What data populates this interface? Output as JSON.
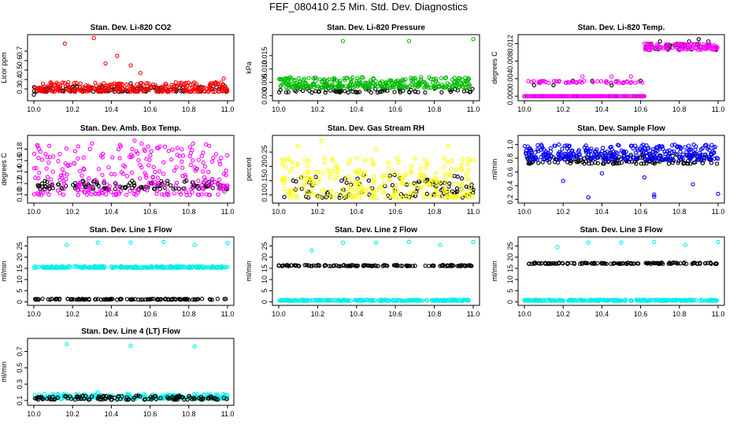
{
  "page": {
    "title": "FEF_080410  2.5 Min. Std. Dev. Diagnostics"
  },
  "chart_data": [
    {
      "id": "co2",
      "type": "scatter",
      "title": "Stan. Dev. Li-820 CO2",
      "ylabel": "Licor ppm",
      "xlim": [
        10.0,
        11.0
      ],
      "ylim": [
        0.2,
        0.85
      ],
      "xticks": [
        "10.0",
        "10.2",
        "10.4",
        "10.6",
        "10.8",
        "11.0"
      ],
      "yticks": [
        "0.3",
        "0.4",
        "0.5",
        "0.6",
        "0.7"
      ],
      "series": [
        {
          "name": "black",
          "color": "#000000",
          "n": 110,
          "base": 0.27,
          "spread": 0.06,
          "seed": 11,
          "points": [
            [
              10.0,
              0.24
            ],
            [
              10.2,
              0.32
            ],
            [
              10.5,
              0.36
            ]
          ]
        },
        {
          "name": "red",
          "color": "#ff0000",
          "n": 300,
          "base": 0.27,
          "spread": 0.1,
          "seed": 12,
          "points": [
            [
              10.16,
              0.78
            ],
            [
              10.31,
              0.84
            ],
            [
              10.37,
              0.57
            ],
            [
              10.43,
              0.65
            ],
            [
              10.5,
              0.55
            ],
            [
              10.55,
              0.47
            ],
            [
              10.98,
              0.41
            ]
          ]
        }
      ]
    },
    {
      "id": "pressure",
      "type": "scatter",
      "title": "Stan. Dev. Li-820 Pressure",
      "ylabel": "kPa",
      "xlim": [
        10.0,
        11.0
      ],
      "ylim": [
        -0.001,
        0.022
      ],
      "xticks": [
        "10.0",
        "10.2",
        "10.4",
        "10.6",
        "10.8",
        "11.0"
      ],
      "yticks": [
        "0.000",
        "0.005",
        "0.010",
        "0.015"
      ],
      "series": [
        {
          "name": "black",
          "color": "#000000",
          "n": 70,
          "base": 0.0012,
          "spread": 0.0015,
          "seed": 21,
          "points": []
        },
        {
          "name": "green",
          "color": "#00bb00",
          "n": 330,
          "base": 0.003,
          "spread": 0.004,
          "seed": 22,
          "points": [
            [
              10.33,
              0.0205
            ],
            [
              10.67,
              0.0205
            ],
            [
              11.0,
              0.0212
            ]
          ]
        }
      ]
    },
    {
      "id": "temp",
      "type": "scatter",
      "title": "Stan. Dev. Li-820 Temp.",
      "ylabel": "degrees C",
      "xlim": [
        10.0,
        11.0
      ],
      "ylim": [
        -0.0005,
        0.0135
      ],
      "xticks": [
        "10.0",
        "10.2",
        "10.4",
        "10.6",
        "10.8",
        "11.0"
      ],
      "yticks": [
        "0.000",
        "0.004",
        "0.008",
        "0.012"
      ],
      "series": [
        {
          "name": "black",
          "color": "#000000",
          "n": 100,
          "base": 0.0,
          "spread": 0.0,
          "seed": 31,
          "points": [
            [
              10.05,
              0.0025
            ],
            [
              10.15,
              0.0025
            ],
            [
              10.25,
              0.0035
            ],
            [
              10.35,
              0.0035
            ],
            [
              10.45,
              0.0025
            ],
            [
              10.6,
              0.0035
            ],
            [
              10.65,
              0.0115
            ],
            [
              10.7,
              0.0125
            ],
            [
              10.75,
              0.0115
            ],
            [
              10.8,
              0.0115
            ],
            [
              10.85,
              0.0125
            ],
            [
              10.9,
              0.013
            ],
            [
              10.95,
              0.0125
            ]
          ]
        },
        {
          "name": "magenta",
          "color": "#ff00ff",
          "n": 300,
          "base": 0.0,
          "spread": 0.0,
          "seed": 32,
          "points": [
            [
              10.1,
              0.0035
            ],
            [
              10.3,
              0.0045
            ],
            [
              10.45,
              0.0045
            ],
            [
              10.55,
              0.0045
            ],
            [
              10.62,
              0.012
            ],
            [
              10.7,
              0.011
            ],
            [
              10.8,
              0.0105
            ],
            [
              10.9,
              0.012
            ]
          ]
        }
      ]
    },
    {
      "id": "ambbox",
      "type": "scatter",
      "title": "Stan. Dev. Amb. Box Temp.",
      "ylabel": "degrees C",
      "xlim": [
        10.0,
        11.0
      ],
      "ylim": [
        0.09,
        0.2
      ],
      "xticks": [
        "10.0",
        "10.2",
        "10.4",
        "10.6",
        "10.8",
        "11.0"
      ],
      "yticks": [
        "0.10",
        "0.12",
        "0.14",
        "0.16",
        "0.18"
      ],
      "series": [
        {
          "name": "black",
          "color": "#000000",
          "n": 110,
          "base": 0.11,
          "spread": 0.016,
          "seed": 41,
          "points": []
        },
        {
          "name": "magenta",
          "color": "#ff00ff",
          "n": 280,
          "base": 0.1,
          "spread": 0.09,
          "seed": 42,
          "points": [
            [
              10.52,
              0.195
            ],
            [
              10.3,
              0.19
            ],
            [
              10.02,
              0.185
            ]
          ]
        }
      ]
    },
    {
      "id": "rh",
      "type": "scatter",
      "title": "Stan. Dev. Gas Stream RH",
      "ylabel": "percent",
      "xlim": [
        10.0,
        11.0
      ],
      "ylim": [
        0.08,
        0.3
      ],
      "xticks": [
        "10.0",
        "10.2",
        "10.4",
        "10.6",
        "10.8",
        "11.0"
      ],
      "yticks": [
        "0.10",
        "0.15",
        "0.20",
        "0.25"
      ],
      "series": [
        {
          "name": "black",
          "color": "#000000",
          "n": 100,
          "base": 0.09,
          "spread": 0.08,
          "seed": 51,
          "points": []
        },
        {
          "name": "yellow",
          "color": "#ffff00",
          "n": 280,
          "base": 0.09,
          "spread": 0.14,
          "seed": 52,
          "points": [
            [
              10.22,
              0.29
            ],
            [
              10.1,
              0.27
            ],
            [
              10.87,
              0.27
            ],
            [
              10.5,
              0.26
            ]
          ]
        }
      ]
    },
    {
      "id": "sample",
      "type": "scatter",
      "title": "Stan. Dev. Sample Flow",
      "ylabel": "ml/min",
      "xlim": [
        10.0,
        11.0
      ],
      "ylim": [
        0.18,
        1.1
      ],
      "xticks": [
        "10.0",
        "10.2",
        "10.4",
        "10.6",
        "10.8",
        "11.0"
      ],
      "yticks": [
        "0.2",
        "0.4",
        "0.6",
        "0.8",
        "1.0"
      ],
      "series": [
        {
          "name": "black",
          "color": "#000000",
          "n": 150,
          "base": 0.72,
          "spread": 0.14,
          "seed": 61,
          "points": []
        },
        {
          "name": "blue",
          "color": "#0000ff",
          "n": 330,
          "base": 0.78,
          "spread": 0.22,
          "seed": 62,
          "points": [
            [
              10.33,
              0.23
            ],
            [
              10.67,
              0.27
            ],
            [
              10.67,
              0.24
            ],
            [
              11.0,
              0.28
            ],
            [
              10.87,
              0.42
            ],
            [
              10.62,
              0.52
            ],
            [
              10.2,
              0.47
            ],
            [
              10.4,
              0.58
            ]
          ]
        }
      ]
    },
    {
      "id": "line1",
      "type": "scatter",
      "title": "Stan. Dev. Line 1 Flow",
      "ylabel": "ml/min",
      "xlim": [
        10.0,
        11.0
      ],
      "ylim": [
        -0.5,
        28
      ],
      "xticks": [
        "10.0",
        "10.2",
        "10.4",
        "10.6",
        "10.8",
        "11.0"
      ],
      "yticks": [
        "0",
        "5",
        "10",
        "15",
        "20",
        "25"
      ],
      "series": [
        {
          "name": "cyan",
          "color": "#00eeee",
          "n": 260,
          "base": 15.2,
          "spread": 0.8,
          "seed": 71,
          "points": [
            [
              10.17,
              25.5
            ],
            [
              10.33,
              26.5
            ],
            [
              10.5,
              26.5
            ],
            [
              10.67,
              26.8
            ],
            [
              10.83,
              25.5
            ],
            [
              11.0,
              26.3
            ]
          ]
        },
        {
          "name": "black",
          "color": "#000000",
          "n": 130,
          "base": 1.0,
          "spread": 0.4,
          "seed": 72,
          "points": []
        }
      ]
    },
    {
      "id": "line2",
      "type": "scatter",
      "title": "Stan. Dev. Line 2 Flow",
      "ylabel": "ml/min",
      "xlim": [
        10.0,
        11.0
      ],
      "ylim": [
        -0.5,
        28
      ],
      "xticks": [
        "10.0",
        "10.2",
        "10.4",
        "10.6",
        "10.8",
        "11.0"
      ],
      "yticks": [
        "0",
        "5",
        "10",
        "15",
        "20",
        "25"
      ],
      "series": [
        {
          "name": "cyan",
          "color": "#00eeee",
          "n": 260,
          "base": 0.5,
          "spread": 0.5,
          "seed": 81,
          "points": [
            [
              10.17,
              23.0
            ],
            [
              10.33,
              26.5
            ],
            [
              10.5,
              26.5
            ],
            [
              10.67,
              26.8
            ],
            [
              10.83,
              25.5
            ],
            [
              11.0,
              26.8
            ]
          ]
        },
        {
          "name": "black",
          "color": "#000000",
          "n": 130,
          "base": 16.0,
          "spread": 0.5,
          "seed": 82,
          "points": []
        }
      ]
    },
    {
      "id": "line3",
      "type": "scatter",
      "title": "Stan. Dev. Line 3 Flow",
      "ylabel": "ml/min",
      "xlim": [
        10.0,
        11.0
      ],
      "ylim": [
        -0.5,
        28
      ],
      "xticks": [
        "10.0",
        "10.2",
        "10.4",
        "10.6",
        "10.8",
        "11.0"
      ],
      "yticks": [
        "0",
        "5",
        "10",
        "15",
        "20",
        "25"
      ],
      "series": [
        {
          "name": "cyan",
          "color": "#00eeee",
          "n": 260,
          "base": 0.5,
          "spread": 0.5,
          "seed": 91,
          "points": [
            [
              10.17,
              24.5
            ],
            [
              10.33,
              26.5
            ],
            [
              10.5,
              26.5
            ],
            [
              10.67,
              26.8
            ],
            [
              10.83,
              25.5
            ],
            [
              11.0,
              26.8
            ]
          ]
        },
        {
          "name": "black",
          "color": "#000000",
          "n": 130,
          "base": 17.0,
          "spread": 0.6,
          "seed": 92,
          "points": []
        }
      ]
    },
    {
      "id": "line4",
      "type": "scatter",
      "title": "Stan. Dev. Line 4 (LT) Flow",
      "ylabel": "ml/min",
      "xlim": [
        10.0,
        11.0
      ],
      "ylim": [
        0.07,
        0.83
      ],
      "xticks": [
        "10.0",
        "10.2",
        "10.4",
        "10.6",
        "10.8",
        "11.0"
      ],
      "yticks": [
        "0.1",
        "0.3",
        "0.5",
        "0.7"
      ],
      "series": [
        {
          "name": "cyan",
          "color": "#00eeee",
          "n": 260,
          "base": 0.12,
          "spread": 0.06,
          "seed": 101,
          "points": [
            [
              10.17,
              0.79
            ],
            [
              10.5,
              0.77
            ],
            [
              10.83,
              0.76
            ],
            [
              10.33,
              0.2
            ]
          ]
        },
        {
          "name": "black",
          "color": "#000000",
          "n": 130,
          "base": 0.11,
          "spread": 0.05,
          "seed": 102,
          "points": []
        }
      ]
    }
  ]
}
